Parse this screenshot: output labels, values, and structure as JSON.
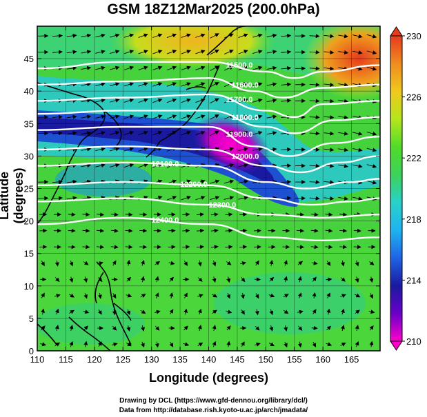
{
  "title": "GSM 18Z12Mar2025 (200.0hPa)",
  "x_axis": {
    "label": "Longitude (degrees)",
    "min": 110,
    "max": 170,
    "ticks": [
      110,
      115,
      120,
      125,
      130,
      135,
      140,
      145,
      150,
      155,
      160,
      165
    ]
  },
  "y_axis": {
    "label": "Latitude  (degrees)",
    "min": 0,
    "max": 50,
    "ticks": [
      0,
      5,
      10,
      15,
      20,
      25,
      30,
      35,
      40,
      45
    ]
  },
  "colorbar": {
    "min": 210,
    "max": 230,
    "ticks": [
      210,
      214,
      218,
      222,
      226,
      230
    ],
    "colors": [
      "#ff00cc",
      "#6a00c8",
      "#1a1aa0",
      "#1e64e6",
      "#1eb4f0",
      "#28d2c8",
      "#3cd25a",
      "#50dc28",
      "#b4e61e",
      "#f0c81e",
      "#f08c1e",
      "#e63c1e"
    ]
  },
  "contours": [
    {
      "label": "11500.0",
      "points": [
        [
          110,
          43.5
        ],
        [
          125,
          44.5
        ],
        [
          140,
          44.5
        ],
        [
          150,
          43.0
        ],
        [
          155,
          42.0
        ],
        [
          160,
          43.0
        ],
        [
          170,
          44.0
        ]
      ]
    },
    {
      "label": "11600.0",
      "points": [
        [
          110,
          41.0
        ],
        [
          125,
          41.5
        ],
        [
          140,
          42.0
        ],
        [
          148,
          40.0
        ],
        [
          153,
          39.0
        ],
        [
          160,
          40.5
        ],
        [
          170,
          41.0
        ]
      ]
    },
    {
      "label": "11700.0",
      "points": [
        [
          110,
          38.5
        ],
        [
          125,
          39.0
        ],
        [
          140,
          39.5
        ],
        [
          150,
          37.0
        ],
        [
          155,
          36.0
        ],
        [
          160,
          38.0
        ],
        [
          170,
          38.5
        ]
      ]
    },
    {
      "label": "11800.0",
      "points": [
        [
          110,
          36.5
        ],
        [
          125,
          37.0
        ],
        [
          140,
          37.0
        ],
        [
          150,
          34.5
        ],
        [
          155,
          33.5
        ],
        [
          162,
          35.5
        ],
        [
          170,
          36.0
        ]
      ]
    },
    {
      "label": "11900.0",
      "points": [
        [
          110,
          34.0
        ],
        [
          125,
          34.5
        ],
        [
          140,
          34.5
        ],
        [
          148,
          31.5
        ],
        [
          154,
          30.0
        ],
        [
          162,
          32.0
        ],
        [
          170,
          33.0
        ]
      ]
    },
    {
      "label": "12000.0",
      "points": [
        [
          110,
          31.0
        ],
        [
          125,
          31.5
        ],
        [
          140,
          31.0
        ],
        [
          150,
          28.5
        ],
        [
          156,
          27.5
        ],
        [
          163,
          29.0
        ],
        [
          170,
          30.0
        ]
      ]
    },
    {
      "label": "12100.0",
      "points": [
        [
          110,
          28.5
        ],
        [
          125,
          29.0
        ],
        [
          140,
          28.5
        ],
        [
          150,
          26.0
        ],
        [
          157,
          25.0
        ],
        [
          165,
          26.0
        ],
        [
          170,
          26.5
        ]
      ]
    },
    {
      "label": "12200.0",
      "points": [
        [
          110,
          25.5
        ],
        [
          125,
          26.0
        ],
        [
          140,
          25.5
        ],
        [
          150,
          23.5
        ],
        [
          158,
          22.5
        ],
        [
          165,
          23.0
        ],
        [
          170,
          23.5
        ]
      ]
    },
    {
      "label": "12300.0",
      "points": [
        [
          110,
          23.0
        ],
        [
          125,
          23.5
        ],
        [
          140,
          22.5
        ],
        [
          150,
          21.0
        ],
        [
          160,
          20.5
        ],
        [
          170,
          21.0
        ]
      ]
    },
    {
      "label": "12400.0",
      "points": [
        [
          110,
          19.5
        ],
        [
          125,
          20.5
        ],
        [
          140,
          19.5
        ],
        [
          150,
          17.5
        ],
        [
          160,
          17.0
        ],
        [
          170,
          17.5
        ]
      ]
    }
  ],
  "credits": {
    "line1": "Drawing by DCL (https://www.gfd-dennou.org/library/dcl/)",
    "line2": "Data from http://database.rish.kyoto-u.ac.jp/arch/jmadata/"
  }
}
